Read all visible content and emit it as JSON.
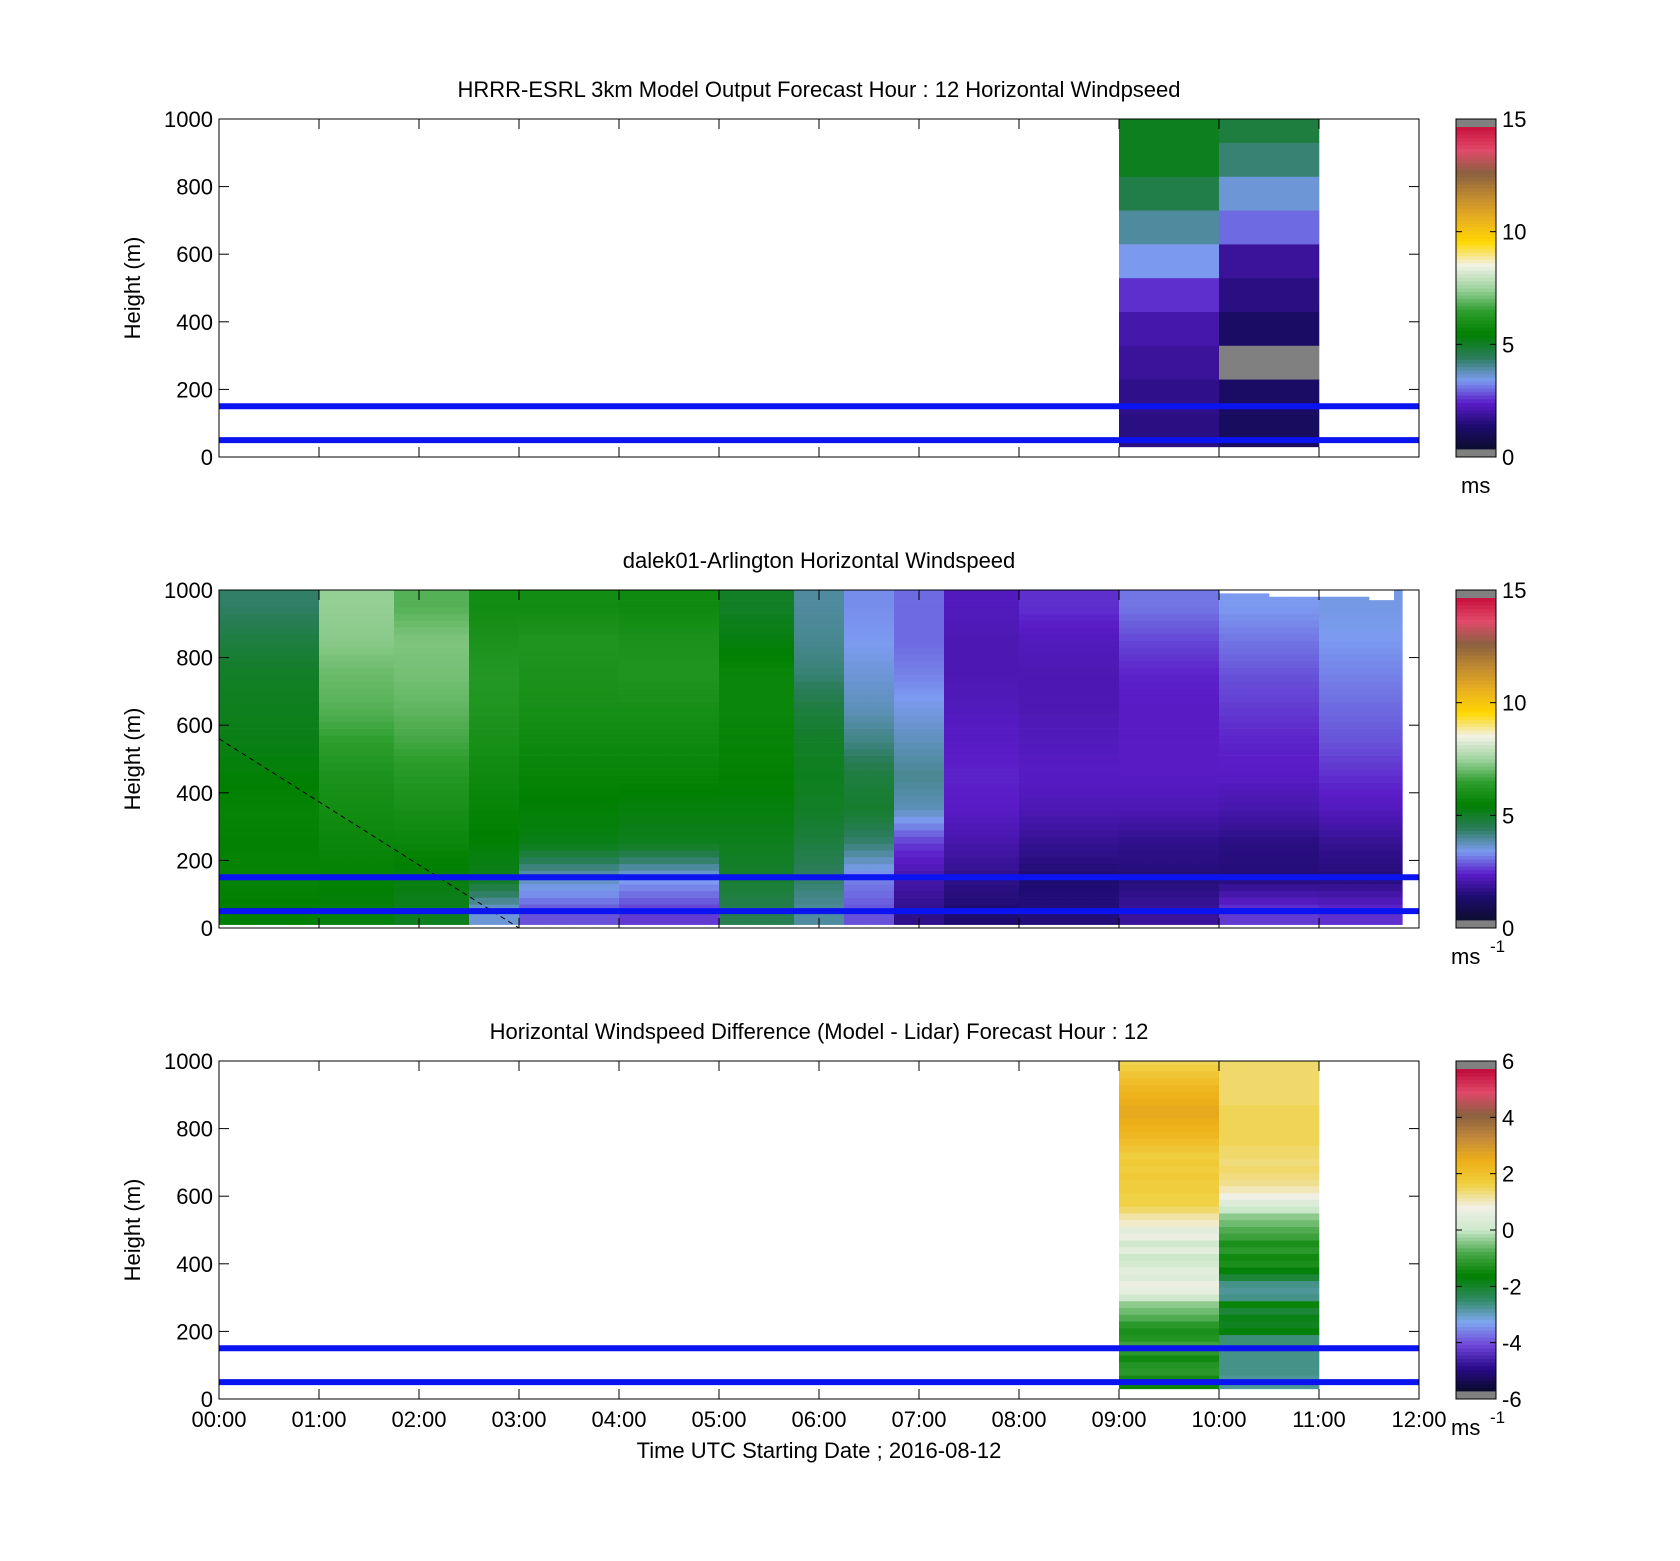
{
  "chart_data": [
    {
      "type": "heatmap",
      "title": "HRRR-ESRL 3km Model Output   Forecast Hour : 12 Horizontal Windpseed",
      "ylabel": "Height (m)",
      "xlim": [
        "00:00",
        "12:00"
      ],
      "ylim": [
        0,
        1000
      ],
      "y_ticks": [
        "0",
        "200",
        "400",
        "600",
        "800",
        "1000"
      ],
      "x_ticks": [
        "00:00",
        "01:00",
        "02:00",
        "03:00",
        "04:00",
        "05:00",
        "06:00",
        "07:00",
        "08:00",
        "09:00",
        "10:00",
        "11:00",
        "12:00"
      ],
      "show_x_tick_labels": false,
      "colorbar": {
        "min": 0,
        "max": 15,
        "ticks": [
          "0",
          "5",
          "10",
          "15"
        ],
        "unit": "ms",
        "unit_sup": ""
      },
      "reference_lines_m": [
        50,
        150
      ],
      "columns": [
        {
          "start": "09:00",
          "end": "10:00",
          "z_bottom": 30,
          "z_step": 100,
          "values": [
            1.3,
            1.4,
            1.6,
            1.8,
            2.3,
            3.2,
            3.8,
            4.5,
            5.0,
            5.0
          ]
        },
        {
          "start": "10:00",
          "end": "11:00",
          "z_bottom": 30,
          "z_step": 100,
          "values": [
            0.8,
            0.9,
            15.2,
            0.9,
            1.3,
            1.6,
            2.8,
            3.4,
            4.1,
            4.6
          ]
        }
      ]
    },
    {
      "type": "heatmap",
      "title": "dalek01-Arlington  Horizontal Windspeed",
      "ylabel": "Height (m)",
      "xlim": [
        "00:00",
        "12:00"
      ],
      "ylim": [
        0,
        1000
      ],
      "y_ticks": [
        "0",
        "200",
        "400",
        "600",
        "800",
        "1000"
      ],
      "x_ticks": [
        "00:00",
        "01:00",
        "02:00",
        "03:00",
        "04:00",
        "05:00",
        "06:00",
        "07:00",
        "08:00",
        "09:00",
        "10:00",
        "11:00",
        "12:00"
      ],
      "show_x_tick_labels": false,
      "colorbar": {
        "min": 0,
        "max": 15,
        "ticks": [
          "0",
          "5",
          "10",
          "15"
        ],
        "unit": "ms",
        "unit_sup": "-1"
      },
      "reference_lines_m": [
        50,
        150
      ],
      "column_width_min": 15,
      "data_end": "11:50",
      "column_tops_m": [
        1000,
        1000,
        1000,
        1000,
        1000,
        1000,
        1000,
        1000,
        1000,
        1000,
        1000,
        1000,
        1000,
        1000,
        1000,
        1000,
        1000,
        1000,
        1000,
        1000,
        1000,
        1000,
        1000,
        1000,
        1000,
        1000,
        1000,
        1000,
        1000,
        1000,
        1000,
        1000,
        1000,
        1000,
        1000,
        1000,
        1000,
        1000,
        1000,
        1000,
        990,
        990,
        980,
        980,
        980,
        980,
        970
      ],
      "lidar_field_description_levels_m": [
        50,
        150,
        250,
        350,
        450,
        550,
        650,
        750,
        850,
        950
      ],
      "lidar_profiles": [
        {
          "start": "00:00",
          "end": "01:00",
          "values": [
            5.3,
            5.5,
            5.4,
            5.5,
            5.3,
            5.1,
            5.0,
            4.9,
            4.6,
            4.2
          ]
        },
        {
          "start": "01:00",
          "end": "01:45",
          "values": [
            5.2,
            5.4,
            5.6,
            5.8,
            6.0,
            6.4,
            6.8,
            7.0,
            7.3,
            7.4
          ]
        },
        {
          "start": "01:45",
          "end": "02:30",
          "values": [
            5.0,
            5.2,
            5.6,
            5.9,
            6.2,
            6.6,
            6.9,
            7.1,
            7.2,
            6.8
          ]
        },
        {
          "start": "02:30",
          "end": "03:00",
          "values": [
            3.4,
            5.0,
            5.3,
            5.5,
            5.7,
            5.9,
            6.1,
            6.2,
            6.0,
            5.8
          ]
        },
        {
          "start": "03:00",
          "end": "04:00",
          "values": [
            2.6,
            3.6,
            5.1,
            5.3,
            5.5,
            5.7,
            5.9,
            6.0,
            6.1,
            5.8
          ]
        },
        {
          "start": "04:00",
          "end": "05:00",
          "values": [
            2.4,
            3.3,
            5.0,
            5.2,
            5.5,
            5.7,
            5.9,
            6.1,
            6.0,
            5.7
          ]
        },
        {
          "start": "05:00",
          "end": "05:45",
          "values": [
            4.4,
            4.8,
            5.0,
            5.2,
            5.4,
            5.5,
            5.6,
            5.6,
            5.2,
            4.9
          ]
        },
        {
          "start": "05:45",
          "end": "06:15",
          "values": [
            3.8,
            4.2,
            4.6,
            4.9,
            5.0,
            4.9,
            4.6,
            4.1,
            3.9,
            3.8
          ]
        },
        {
          "start": "06:15",
          "end": "06:45",
          "values": [
            2.6,
            3.0,
            4.1,
            4.8,
            4.6,
            4.0,
            3.6,
            3.4,
            3.2,
            3.1
          ]
        },
        {
          "start": "06:45",
          "end": "07:15",
          "values": [
            1.4,
            1.8,
            2.4,
            3.6,
            3.9,
            3.6,
            3.3,
            3.0,
            2.8,
            2.8
          ]
        },
        {
          "start": "07:15",
          "end": "08:00",
          "values": [
            1.1,
            1.4,
            1.8,
            2.1,
            2.2,
            2.1,
            2.0,
            1.9,
            1.9,
            2.0
          ]
        },
        {
          "start": "08:00",
          "end": "09:00",
          "values": [
            1.2,
            1.1,
            1.5,
            1.9,
            2.1,
            2.0,
            1.9,
            1.9,
            2.0,
            2.3
          ]
        },
        {
          "start": "09:00",
          "end": "10:00",
          "values": [
            1.6,
            1.2,
            1.4,
            1.9,
            2.1,
            2.1,
            2.1,
            2.2,
            2.5,
            2.9
          ]
        },
        {
          "start": "10:00",
          "end": "11:00",
          "values": [
            2.4,
            1.2,
            1.3,
            1.8,
            2.1,
            2.2,
            2.4,
            2.6,
            2.9,
            3.2
          ]
        },
        {
          "start": "11:00",
          "end": "11:50",
          "values": [
            2.3,
            1.2,
            1.5,
            2.0,
            2.3,
            2.6,
            2.8,
            3.0,
            3.2,
            3.3
          ]
        }
      ],
      "annotation_line": {
        "style": "dashed",
        "from": {
          "t": "00:00",
          "z": 560
        },
        "to": {
          "t": "03:00",
          "z": 0
        }
      }
    },
    {
      "type": "heatmap",
      "title": "Horizontal Windspeed Difference (Model - Lidar) Forecast Hour : 12",
      "xlabel": "Time UTC  Starting Date ; 2016-08-12",
      "ylabel": "Height (m)",
      "xlim": [
        "00:00",
        "12:00"
      ],
      "ylim": [
        0,
        1000
      ],
      "y_ticks": [
        "0",
        "200",
        "400",
        "600",
        "800",
        "1000"
      ],
      "x_ticks": [
        "00:00",
        "01:00",
        "02:00",
        "03:00",
        "04:00",
        "05:00",
        "06:00",
        "07:00",
        "08:00",
        "09:00",
        "10:00",
        "11:00",
        "12:00"
      ],
      "show_x_tick_labels": true,
      "colorbar": {
        "min": -6,
        "max": 6,
        "ticks": [
          "-6",
          "-4",
          "-2",
          "0",
          "2",
          "4",
          "6"
        ],
        "unit": "ms",
        "unit_sup": "-1"
      },
      "reference_lines_m": [
        50,
        150
      ],
      "columns": [
        {
          "start": "09:00",
          "end": "10:00",
          "z_bottom": 30,
          "z_step": 20,
          "values": [
            -1.6,
            -1.5,
            -1.2,
            -1.3,
            -1.5,
            -1.2,
            -1.0,
            -1.3,
            -1.4,
            -1.2,
            -0.8,
            -0.6,
            -0.4,
            0.1,
            0.6,
            0.7,
            0.4,
            0.5,
            0.2,
            0.0,
            0.5,
            0.1,
            0.7,
            0.5,
            1.0,
            1.2,
            1.5,
            1.7,
            1.7,
            1.8,
            1.8,
            1.9,
            1.8,
            1.9,
            1.8,
            2.0,
            2.2,
            2.4,
            2.5,
            2.6,
            2.7,
            2.7,
            2.6,
            2.5,
            2.4,
            2.2,
            2.0,
            1.8,
            1.6,
            1.5
          ]
        },
        {
          "start": "10:00",
          "end": "11:00",
          "z_bottom": 30,
          "z_step": 20,
          "values": [
            -2.9,
            -2.9,
            -2.8,
            -2.8,
            -2.8,
            -2.8,
            -2.7,
            -2.7,
            -1.8,
            -2.0,
            -1.9,
            -2.2,
            -1.6,
            -2.8,
            -2.9,
            -2.8,
            -2.2,
            -1.8,
            -1.4,
            -1.5,
            -1.2,
            -1.4,
            -1.0,
            -0.8,
            -0.6,
            -0.4,
            0.0,
            0.4,
            0.8,
            1.1,
            1.3,
            1.4,
            1.5,
            1.4,
            1.5,
            1.5,
            1.6,
            1.6,
            1.6,
            1.6,
            1.6,
            1.6,
            1.5,
            1.5,
            1.5,
            1.5,
            1.5,
            1.5,
            1.5,
            1.6
          ]
        }
      ]
    }
  ],
  "colors": {
    "reference_line": "#0a14f0",
    "windspeed_colormap": [
      "#0d0d2e",
      "#1c0b6e",
      "#5a1cc8",
      "#7b9bf0",
      "#2a7d5a",
      "#008000",
      "#2e9e2e",
      "#9fd49f",
      "#f2f2e6",
      "#ffd700",
      "#eab020",
      "#c08a30",
      "#8a6040",
      "#e24a6a",
      "#c8103c"
    ],
    "difference_colormap": [
      "#0a0a2a",
      "#2a0a8a",
      "#6f45d8",
      "#7fa8f0",
      "#2f8a62",
      "#008000",
      "#48a848",
      "#cbe8cb",
      "#f2f0e6",
      "#f0d040",
      "#eeb018",
      "#c48a3a",
      "#8a6040",
      "#e04868",
      "#c00a3a"
    ],
    "out_of_range": "#808080"
  }
}
